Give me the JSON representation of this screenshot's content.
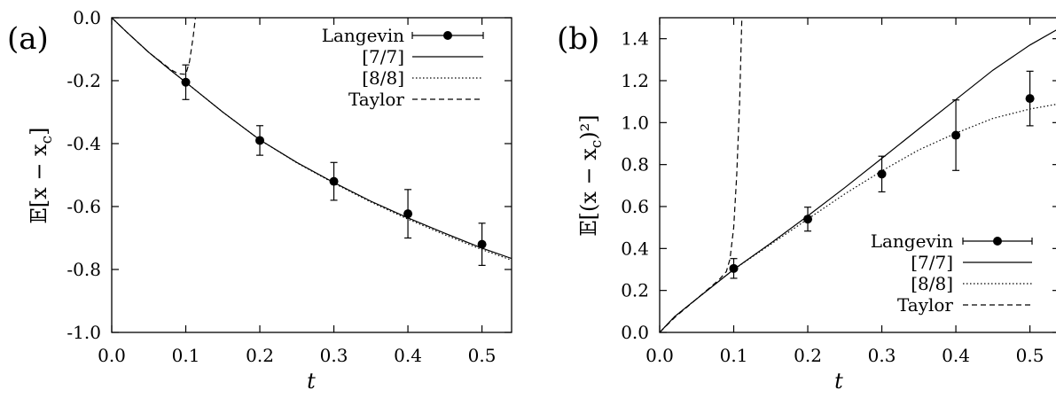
{
  "chart_data": [
    {
      "type": "line",
      "panel_label": "(a)",
      "xlabel": "t",
      "ylabel": "𝔼[x − x",
      "ylabel_sub": "c",
      "ylabel_close": "]",
      "xlim": [
        0.0,
        0.54
      ],
      "ylim": [
        -1.0,
        0.0
      ],
      "x_ticks": [
        0.0,
        0.1,
        0.2,
        0.3,
        0.4,
        0.5
      ],
      "x_tick_labels": [
        "0.0",
        "0.1",
        "0.2",
        "0.3",
        "0.4",
        "0.5"
      ],
      "y_ticks": [
        0.0,
        -0.2,
        -0.4,
        -0.6,
        -0.8,
        -1.0
      ],
      "y_tick_labels": [
        "0.0",
        "-0.2",
        "-0.4",
        "-0.6",
        "-0.8",
        "-1.0"
      ],
      "legend_position": "top-right",
      "series": [
        {
          "name": "Langevin",
          "style": "points-errorbars",
          "points": [
            {
              "x": 0.1,
              "y": -0.205,
              "err": 0.055
            },
            {
              "x": 0.2,
              "y": -0.39,
              "err": 0.047
            },
            {
              "x": 0.3,
              "y": -0.52,
              "err": 0.06
            },
            {
              "x": 0.4,
              "y": -0.623,
              "err": 0.077
            },
            {
              "x": 0.5,
              "y": -0.72,
              "err": 0.067
            }
          ]
        },
        {
          "name": "[7/7]",
          "style": "solid",
          "x": [
            0.0,
            0.02,
            0.05,
            0.08,
            0.1,
            0.15,
            0.2,
            0.25,
            0.3,
            0.35,
            0.4,
            0.45,
            0.5,
            0.54
          ],
          "y": [
            0.0,
            -0.045,
            -0.11,
            -0.168,
            -0.205,
            -0.3,
            -0.388,
            -0.46,
            -0.524,
            -0.583,
            -0.636,
            -0.685,
            -0.732,
            -0.765
          ]
        },
        {
          "name": "[8/8]",
          "style": "dotted",
          "x": [
            0.0,
            0.02,
            0.05,
            0.08,
            0.1,
            0.15,
            0.2,
            0.25,
            0.3,
            0.35,
            0.4,
            0.45,
            0.5,
            0.54
          ],
          "y": [
            0.0,
            -0.045,
            -0.11,
            -0.168,
            -0.205,
            -0.3,
            -0.388,
            -0.461,
            -0.526,
            -0.586,
            -0.64,
            -0.69,
            -0.737,
            -0.77
          ]
        },
        {
          "name": "Taylor",
          "style": "dashed",
          "x": [
            0.0,
            0.02,
            0.05,
            0.08,
            0.09,
            0.1,
            0.105,
            0.11,
            0.113
          ],
          "y": [
            0.0,
            -0.045,
            -0.11,
            -0.165,
            -0.178,
            -0.18,
            -0.14,
            -0.06,
            0.0
          ]
        }
      ]
    },
    {
      "type": "line",
      "panel_label": "(b)",
      "xlabel": "t",
      "ylabel": "𝔼[(x − x",
      "ylabel_sub": "c",
      "ylabel_close": ")²]",
      "xlim": [
        0.0,
        0.54
      ],
      "ylim": [
        0.0,
        1.5
      ],
      "x_ticks": [
        0.0,
        0.1,
        0.2,
        0.3,
        0.4,
        0.5
      ],
      "x_tick_labels": [
        "0.0",
        "0.1",
        "0.2",
        "0.3",
        "0.4",
        "0.5"
      ],
      "y_ticks": [
        0.0,
        0.2,
        0.4,
        0.6,
        0.8,
        1.0,
        1.2,
        1.4
      ],
      "y_tick_labels": [
        "0.0",
        "0.2",
        "0.4",
        "0.6",
        "0.8",
        "1.0",
        "1.2",
        "1.4"
      ],
      "legend_position": "bottom-right",
      "series": [
        {
          "name": "Langevin",
          "style": "points-errorbars",
          "points": [
            {
              "x": 0.1,
              "y": 0.305,
              "err": 0.047
            },
            {
              "x": 0.2,
              "y": 0.54,
              "err": 0.057
            },
            {
              "x": 0.3,
              "y": 0.755,
              "err": 0.085
            },
            {
              "x": 0.4,
              "y": 0.94,
              "err": 0.168
            },
            {
              "x": 0.5,
              "y": 1.115,
              "err": 0.13
            }
          ]
        },
        {
          "name": "[7/7]",
          "style": "solid",
          "x": [
            0.0,
            0.02,
            0.05,
            0.1,
            0.15,
            0.2,
            0.25,
            0.3,
            0.35,
            0.4,
            0.45,
            0.5,
            0.54
          ],
          "y": [
            0.0,
            0.075,
            0.16,
            0.3,
            0.425,
            0.555,
            0.69,
            0.83,
            0.97,
            1.11,
            1.25,
            1.37,
            1.45
          ]
        },
        {
          "name": "[8/8]",
          "style": "dotted",
          "x": [
            0.0,
            0.02,
            0.05,
            0.1,
            0.15,
            0.2,
            0.25,
            0.3,
            0.35,
            0.4,
            0.45,
            0.5,
            0.54
          ],
          "y": [
            0.0,
            0.075,
            0.16,
            0.3,
            0.42,
            0.54,
            0.66,
            0.77,
            0.87,
            0.95,
            1.02,
            1.065,
            1.09
          ]
        },
        {
          "name": "Taylor",
          "style": "dashed",
          "x": [
            0.0,
            0.02,
            0.05,
            0.08,
            0.09,
            0.095,
            0.1,
            0.104,
            0.108,
            0.111
          ],
          "y": [
            0.0,
            0.07,
            0.16,
            0.25,
            0.29,
            0.35,
            0.5,
            0.75,
            1.1,
            1.5
          ]
        }
      ]
    }
  ]
}
